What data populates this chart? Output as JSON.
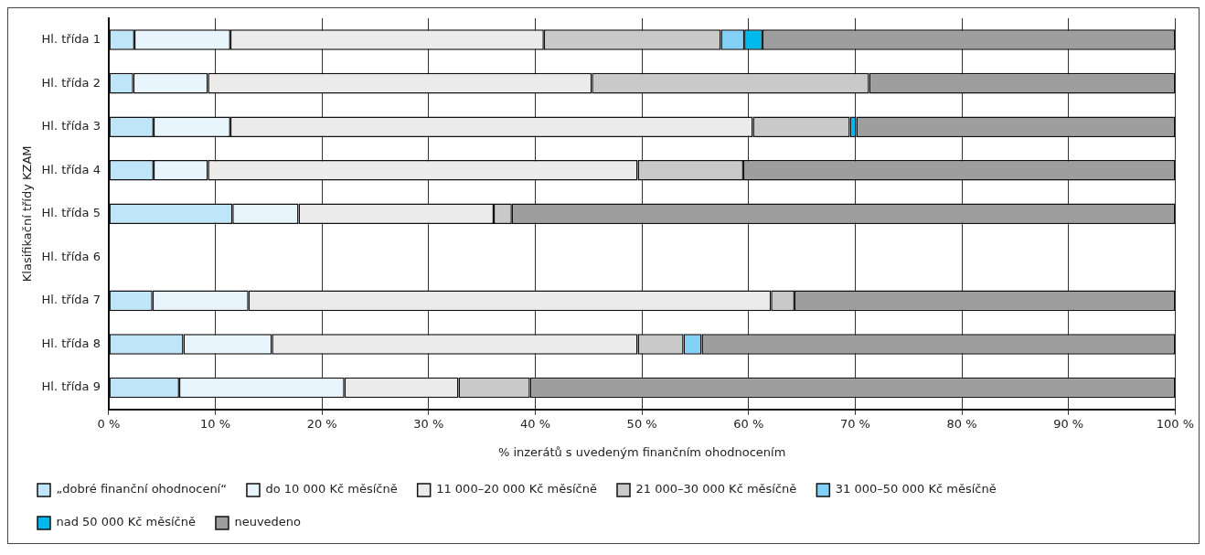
{
  "chart_data": {
    "type": "bar",
    "orientation": "horizontal",
    "stacked": true,
    "categories": [
      "Hl. třída 1",
      "Hl. třída 2",
      "Hl. třída 3",
      "Hl. třída 4",
      "Hl. třída 5",
      "Hl. třída 6",
      "Hl. třída 7",
      "Hl. třída 8",
      "Hl. třída 9"
    ],
    "xlabel": "% inzerátů s uvedeným finančním ohodnocením",
    "ylabel": "Klasifikační třídy KZAM",
    "xlim": [
      0,
      100
    ],
    "xticks": [
      {
        "value": 0,
        "label": "0 %"
      },
      {
        "value": 10,
        "label": "10 %"
      },
      {
        "value": 20,
        "label": "20 %"
      },
      {
        "value": 30,
        "label": "30 %"
      },
      {
        "value": 40,
        "label": "40 %"
      },
      {
        "value": 50,
        "label": "50 %"
      },
      {
        "value": 60,
        "label": "60 %"
      },
      {
        "value": 70,
        "label": "70 %"
      },
      {
        "value": 80,
        "label": "80 %"
      },
      {
        "value": 90,
        "label": "90 %"
      },
      {
        "value": 100,
        "label": "100 %"
      }
    ],
    "grid": "x",
    "legend": "bottom",
    "series": [
      {
        "name": "„dobré finanční ohodnocení“",
        "color": "#bfe5f8",
        "values": [
          2.4,
          2.3,
          4.2,
          4.2,
          11.6,
          null,
          4.1,
          7.0,
          6.6
        ]
      },
      {
        "name": "do 10 000 Kč měsíčně",
        "color": "#e8f5fc",
        "values": [
          9.0,
          7.0,
          7.2,
          5.1,
          6.2,
          null,
          9.0,
          8.3,
          15.5
        ]
      },
      {
        "name": "11 000–20 000 Kč měsíčně",
        "color": "#ebebeb",
        "values": [
          29.4,
          36.0,
          49.0,
          40.3,
          18.3,
          null,
          49.0,
          34.3,
          10.7
        ]
      },
      {
        "name": "21 000–30 000 Kč měsíčně",
        "color": "#c8c9c8",
        "values": [
          16.6,
          26.0,
          9.1,
          9.9,
          1.7,
          null,
          2.2,
          4.3,
          6.7
        ]
      },
      {
        "name": "31 000–50 000 Kč měsíčně",
        "color": "#82d0f5",
        "values": [
          2.2,
          0,
          0,
          0,
          0,
          null,
          0,
          1.7,
          0
        ]
      },
      {
        "name": "nad 50 000 Kč měsíčně",
        "color": "#00b9ec",
        "values": [
          1.7,
          0,
          0.6,
          0,
          0,
          null,
          0,
          0,
          0
        ]
      },
      {
        "name": "neuvedeno",
        "color": "#9d9e9d",
        "values": [
          38.7,
          28.7,
          29.9,
          40.5,
          62.2,
          null,
          35.7,
          44.4,
          60.5
        ]
      }
    ]
  }
}
